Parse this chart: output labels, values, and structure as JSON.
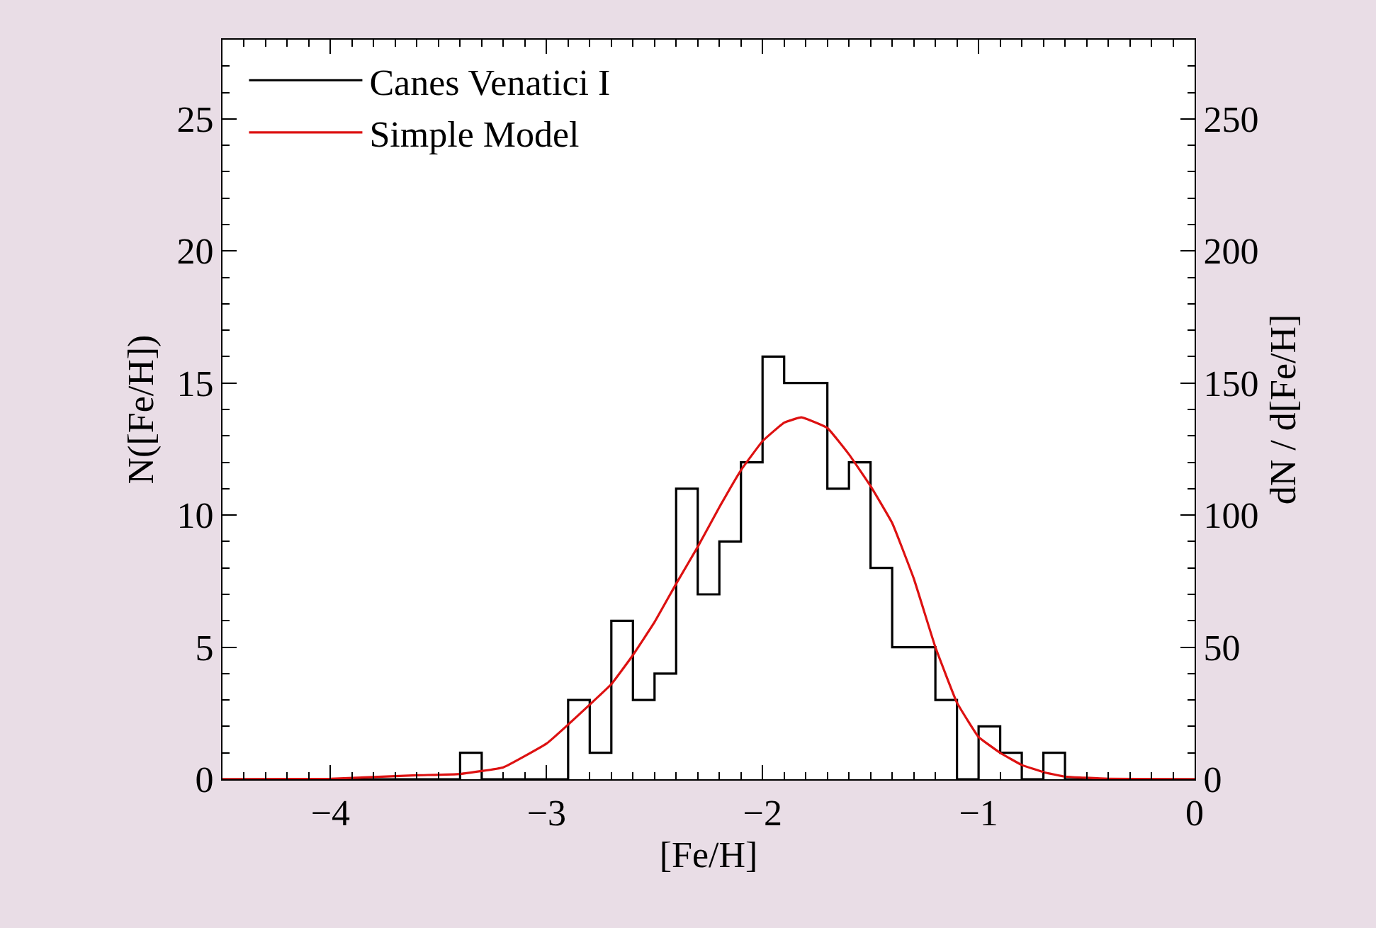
{
  "chart_data": {
    "type": "histogram",
    "xlabel": "[Fe/H]",
    "ylabel": "N([Fe/H])",
    "y2label": "dN / d[Fe/H]",
    "series": [
      {
        "name": "Canes Venatici I",
        "color": "#000000",
        "bins": [
          -4.5,
          -4.4,
          -4.3,
          -4.2,
          -4.1,
          -4.0,
          -3.9,
          -3.8,
          -3.7,
          -3.6,
          -3.5,
          -3.4,
          -3.3,
          -3.2,
          -3.1,
          -3.0,
          -2.9,
          -2.8,
          -2.7,
          -2.6,
          -2.5,
          -2.4,
          -2.3,
          -2.2,
          -2.1,
          -2.0,
          -1.9,
          -1.8,
          -1.7,
          -1.6,
          -1.5,
          -1.4,
          -1.3,
          -1.2,
          -1.1,
          -1.0,
          -0.9,
          -0.8,
          -0.7,
          -0.6,
          -0.5,
          -0.4,
          -0.3,
          -0.2,
          -0.1,
          0.0
        ],
        "values": [
          0,
          0,
          0,
          0,
          0,
          0,
          0,
          0,
          0,
          0,
          0,
          1,
          0,
          0,
          0,
          0,
          3,
          1,
          6,
          3,
          4,
          11,
          7,
          9,
          12,
          16,
          15,
          15,
          11,
          12,
          8,
          5,
          5,
          3,
          0,
          2,
          1,
          0,
          1,
          0,
          0,
          0,
          0,
          0,
          0
        ]
      },
      {
        "name": "Simple Model",
        "color": "#dd1111",
        "type": "line",
        "axis": "y2",
        "x": [
          -4.5,
          -4.0,
          -3.6,
          -3.4,
          -3.2,
          -3.0,
          -2.9,
          -2.7,
          -2.6,
          -2.5,
          -2.4,
          -2.3,
          -2.2,
          -2.1,
          -2.0,
          -1.9,
          -1.82,
          -1.7,
          -1.6,
          -1.5,
          -1.4,
          -1.3,
          -1.2,
          -1.1,
          -1.0,
          -0.9,
          -0.8,
          -0.7,
          -0.6,
          -0.4,
          0.0
        ],
        "values": [
          0,
          0.2,
          1.5,
          2,
          4.5,
          13.5,
          20.7,
          36,
          47,
          59.5,
          74,
          88,
          103,
          117,
          128,
          135,
          137,
          133,
          123,
          111,
          97,
          76,
          50,
          29,
          16,
          10,
          5.4,
          2.7,
          1,
          0.2,
          0
        ]
      }
    ],
    "xlim": [
      -4.5,
      0
    ],
    "xticks": [
      -4,
      -3,
      -2,
      -1,
      0
    ],
    "ylim": [
      0,
      28
    ],
    "yticks": [
      0,
      5,
      10,
      15,
      20,
      25
    ],
    "y2lim": [
      0,
      280
    ],
    "y2ticks": [
      0,
      50,
      100,
      150,
      200,
      250
    ],
    "legend": "top left"
  }
}
